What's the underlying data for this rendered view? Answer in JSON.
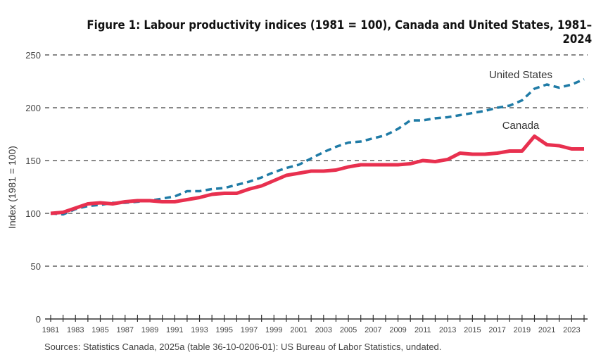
{
  "chart_data": {
    "type": "line",
    "title": "Figure 1: Labour productivity indices (1981 = 100), Canada and United States, 1981–2024",
    "xlabel": "",
    "ylabel": "Index (1981 = 100)",
    "ylim": [
      0,
      250
    ],
    "yticks": [
      "0",
      "50",
      "100",
      "150",
      "200",
      "250"
    ],
    "xticks": [
      "1981",
      "1983",
      "1985",
      "1987",
      "1989",
      "1991",
      "1993",
      "1995",
      "1997",
      "1999",
      "2001",
      "2003",
      "2005",
      "2007",
      "2009",
      "2011",
      "2013",
      "2015",
      "2017",
      "2019",
      "2021",
      "2023"
    ],
    "x": [
      1981,
      1982,
      1983,
      1984,
      1985,
      1986,
      1987,
      1988,
      1989,
      1990,
      1991,
      1992,
      1993,
      1994,
      1995,
      1996,
      1997,
      1998,
      1999,
      2000,
      2001,
      2002,
      2003,
      2004,
      2005,
      2006,
      2007,
      2008,
      2009,
      2010,
      2011,
      2012,
      2013,
      2014,
      2015,
      2016,
      2017,
      2018,
      2019,
      2020,
      2021,
      2022,
      2023,
      2024
    ],
    "grid": true,
    "series": [
      {
        "name": "United States",
        "color": "#1f7ba6",
        "style": "dashed",
        "values": [
          100,
          99,
          104,
          107,
          108,
          110,
          110,
          111,
          112,
          114,
          116,
          121,
          121,
          123,
          124,
          127,
          130,
          134,
          139,
          143,
          146,
          152,
          158,
          163,
          167,
          168,
          171,
          174,
          180,
          188,
          188,
          190,
          191,
          193,
          195,
          197,
          200,
          202,
          207,
          218,
          222,
          219,
          222,
          227
        ]
      },
      {
        "name": "Canada",
        "color": "#e8304f",
        "style": "solid",
        "values": [
          100,
          101,
          105,
          109,
          110,
          109,
          111,
          112,
          112,
          111,
          111,
          113,
          115,
          118,
          119,
          119,
          123,
          126,
          131,
          136,
          138,
          140,
          140,
          141,
          144,
          146,
          146,
          146,
          146,
          147,
          150,
          149,
          151,
          157,
          156,
          156,
          157,
          159,
          159,
          173,
          165,
          164,
          161,
          161
        ]
      }
    ],
    "source": "Sources: Statistics Canada, 2025a (table 36-10-0206-01): US Bureau of Labor Statistics, undated."
  }
}
